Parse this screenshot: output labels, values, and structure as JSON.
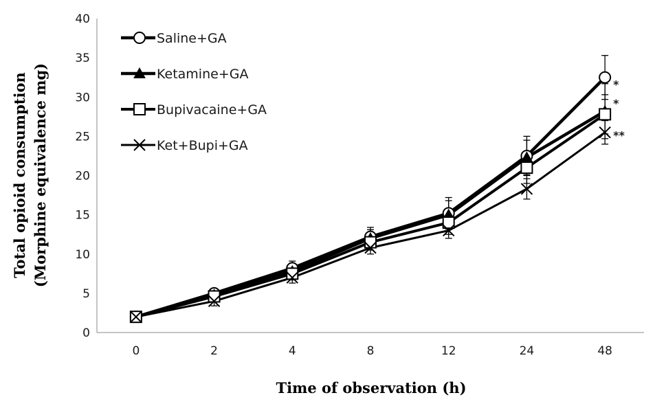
{
  "chart_data": {
    "type": "line",
    "xlabel": "Time of observation (h)",
    "ylabel_line1": "Total opioid consumption",
    "ylabel_line2": "(Morphine equivalence mg)",
    "categories": [
      "0",
      "2",
      "4",
      "8",
      "12",
      "24",
      "48"
    ],
    "ylim": [
      0,
      40
    ],
    "yticks": [
      0,
      5,
      10,
      15,
      20,
      25,
      30,
      35,
      40
    ],
    "grid": false,
    "legend_position": "top-left",
    "series": [
      {
        "name": "Saline+GA",
        "marker": "circle-open",
        "color": "#000000",
        "values": [
          2.0,
          5.0,
          8.2,
          12.2,
          15.2,
          22.5,
          32.5
        ],
        "errors": [
          0.4,
          0.5,
          0.9,
          1.2,
          2.0,
          2.5,
          2.8
        ],
        "significance": "*"
      },
      {
        "name": "Ketamine+GA",
        "marker": "triangle-filled",
        "color": "#000000",
        "values": [
          2.0,
          4.8,
          7.8,
          12.0,
          15.0,
          22.3,
          28.2
        ],
        "errors": [
          0.4,
          0.5,
          0.8,
          1.1,
          1.8,
          2.2,
          3.5
        ],
        "significance": "*"
      },
      {
        "name": "Bupivacaine+GA",
        "marker": "square-open",
        "color": "#000000",
        "values": [
          2.0,
          4.6,
          7.5,
          11.5,
          14.0,
          21.0,
          27.8
        ],
        "errors": [
          0.4,
          0.5,
          0.8,
          1.0,
          1.5,
          2.0,
          2.5
        ],
        "significance": ""
      },
      {
        "name": "Ket+Bupi+GA",
        "marker": "x",
        "color": "#000000",
        "values": [
          2.0,
          4.0,
          7.0,
          10.8,
          13.0,
          18.3,
          25.5
        ],
        "errors": [
          0.4,
          0.6,
          0.7,
          0.8,
          1.0,
          1.3,
          1.5
        ],
        "significance": "**"
      }
    ]
  }
}
